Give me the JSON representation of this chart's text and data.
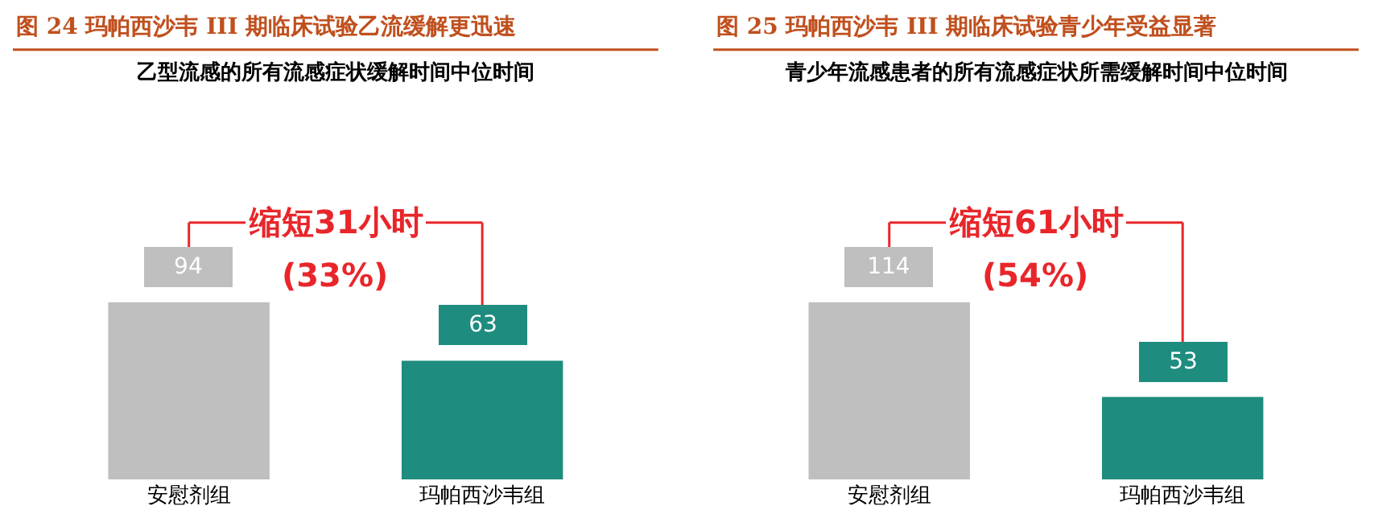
{
  "chart_data": [
    {
      "type": "bar",
      "title": "图 24 玛帕西沙韦 III 期临床试验乙流缓解更迅速",
      "subtitle": "乙型流感的所有流感症状缓解时间中位时间",
      "categories": [
        "安慰剂组",
        "玛帕西沙韦组"
      ],
      "values": [
        94,
        63
      ],
      "colors": [
        "#bfbfbf",
        "#1e8c7e"
      ],
      "data_labels": true,
      "annotations": [
        "缩短31小时",
        "(33%)"
      ]
    },
    {
      "type": "bar",
      "title": "图 25 玛帕西沙韦 III 期临床试验青少年受益显著",
      "subtitle": "青少年流感患者的所有流感症状所需缓解时间中位时间",
      "categories": [
        "安慰剂组",
        "玛帕西沙韦组"
      ],
      "values": [
        114,
        53
      ],
      "colors": [
        "#bfbfbf",
        "#1e8c7e"
      ],
      "data_labels": true,
      "annotations": [
        "缩短61小时",
        "(54%)"
      ]
    }
  ]
}
